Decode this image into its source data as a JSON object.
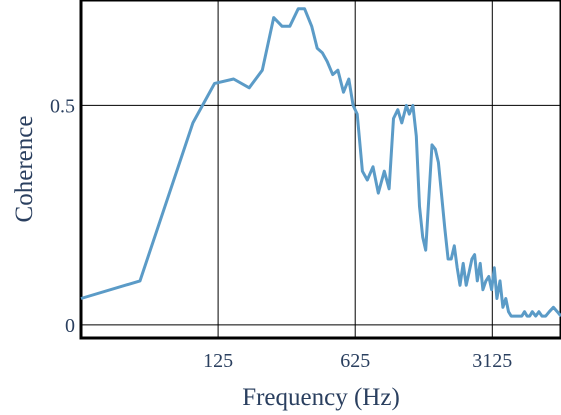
{
  "chart_data": {
    "type": "line",
    "xlabel": "Frequency (Hz)",
    "ylabel": "Coherence",
    "x_scale": "log",
    "xlim": [
      25,
      7000
    ],
    "ylim": [
      -0.03,
      0.74
    ],
    "x_ticks": [
      125,
      625,
      3125
    ],
    "x_tick_labels": [
      "125",
      "625",
      "3125"
    ],
    "y_ticks": [
      0,
      0.5
    ],
    "y_tick_labels": [
      "0",
      "0.5"
    ],
    "grid": true,
    "line_color": "#5b9bc7",
    "series": [
      {
        "x": [
          25,
          50,
          93,
          120,
          150,
          180,
          210,
          240,
          265,
          290,
          320,
          345,
          375,
          400,
          425,
          450,
          480,
          510,
          545,
          580,
          610,
          640,
          680,
          720,
          770,
          820,
          880,
          930,
          980,
          1030,
          1080,
          1140,
          1180,
          1230,
          1280,
          1330,
          1380,
          1430,
          1480,
          1540,
          1600,
          1660,
          1720,
          1790,
          1860,
          1930,
          2000,
          2070,
          2140,
          2220,
          2300,
          2380,
          2460,
          2540,
          2620,
          2710,
          2800,
          2900,
          3000,
          3100,
          3200,
          3300,
          3420,
          3540,
          3660,
          3780,
          3900,
          4030,
          4160,
          4290,
          4420,
          4560,
          4700,
          4850,
          5000,
          5200,
          5400,
          5600,
          5850,
          6100,
          6400,
          6700,
          7000
        ],
        "y": [
          0.06,
          0.1,
          0.46,
          0.55,
          0.56,
          0.54,
          0.58,
          0.7,
          0.68,
          0.68,
          0.72,
          0.72,
          0.68,
          0.63,
          0.62,
          0.6,
          0.57,
          0.58,
          0.53,
          0.56,
          0.5,
          0.48,
          0.35,
          0.33,
          0.36,
          0.3,
          0.35,
          0.31,
          0.47,
          0.49,
          0.46,
          0.5,
          0.48,
          0.5,
          0.43,
          0.27,
          0.2,
          0.17,
          0.28,
          0.41,
          0.4,
          0.37,
          0.3,
          0.22,
          0.15,
          0.15,
          0.18,
          0.13,
          0.09,
          0.14,
          0.09,
          0.12,
          0.15,
          0.16,
          0.1,
          0.14,
          0.08,
          0.1,
          0.11,
          0.08,
          0.13,
          0.06,
          0.1,
          0.04,
          0.06,
          0.03,
          0.02,
          0.02,
          0.02,
          0.02,
          0.02,
          0.03,
          0.02,
          0.02,
          0.03,
          0.02,
          0.03,
          0.02,
          0.02,
          0.03,
          0.04,
          0.03,
          0.02
        ]
      }
    ]
  }
}
